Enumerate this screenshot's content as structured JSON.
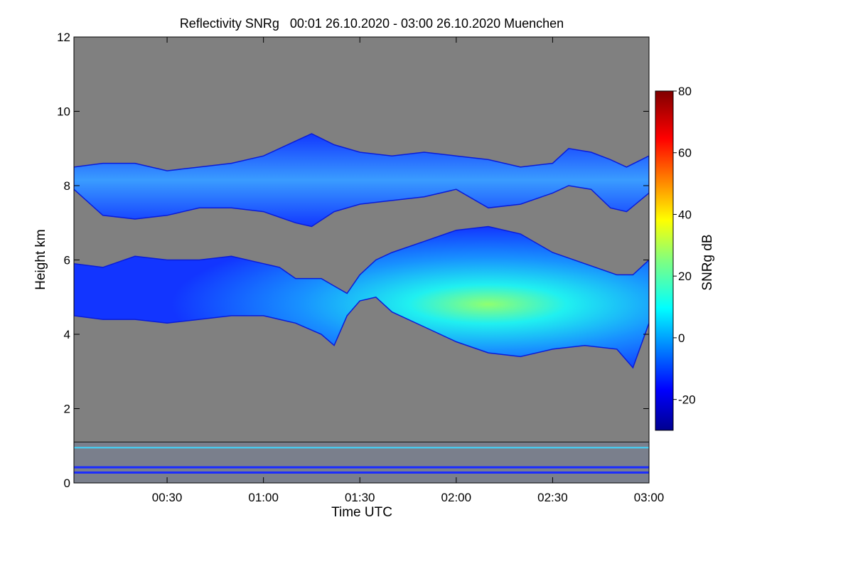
{
  "chart_data": {
    "type": "heatmap",
    "title": "Reflectivity SNRg   00:01 26.10.2020 - 03:00 26.10.2020 Muenchen",
    "xlabel": "Time UTC",
    "ylabel": "Height km",
    "x_range_minutes": [
      1,
      180
    ],
    "x_ticks": [
      {
        "label": "00:30",
        "minutes": 30
      },
      {
        "label": "01:00",
        "minutes": 60
      },
      {
        "label": "01:30",
        "minutes": 90
      },
      {
        "label": "02:00",
        "minutes": 120
      },
      {
        "label": "02:30",
        "minutes": 150
      },
      {
        "label": "03:00",
        "minutes": 180
      }
    ],
    "ylim": [
      0,
      12
    ],
    "y_ticks": [
      0,
      2,
      4,
      6,
      8,
      10,
      12
    ],
    "background_color": "#808080",
    "colorbar": {
      "label": "SNRg dB",
      "range": [
        -30,
        80
      ],
      "ticks": [
        -20,
        0,
        20,
        40,
        60,
        80
      ],
      "colormap": "jet"
    },
    "cloud_layers": [
      {
        "name": "upper",
        "mean_snr_db": -8,
        "profile": [
          {
            "t": 0,
            "base": 7.9,
            "top": 8.5
          },
          {
            "t": 10,
            "base": 7.2,
            "top": 8.6
          },
          {
            "t": 20,
            "base": 7.1,
            "top": 8.6
          },
          {
            "t": 30,
            "base": 7.2,
            "top": 8.4
          },
          {
            "t": 40,
            "base": 7.4,
            "top": 8.5
          },
          {
            "t": 50,
            "base": 7.4,
            "top": 8.6
          },
          {
            "t": 60,
            "base": 7.3,
            "top": 8.8
          },
          {
            "t": 70,
            "base": 7.0,
            "top": 9.2
          },
          {
            "t": 75,
            "base": 6.9,
            "top": 9.4
          },
          {
            "t": 82,
            "base": 7.3,
            "top": 9.1
          },
          {
            "t": 90,
            "base": 7.5,
            "top": 8.9
          },
          {
            "t": 100,
            "base": 7.6,
            "top": 8.8
          },
          {
            "t": 110,
            "base": 7.7,
            "top": 8.9
          },
          {
            "t": 120,
            "base": 7.9,
            "top": 8.8
          },
          {
            "t": 130,
            "base": 7.4,
            "top": 8.7
          },
          {
            "t": 140,
            "base": 7.5,
            "top": 8.5
          },
          {
            "t": 150,
            "base": 7.8,
            "top": 8.6
          },
          {
            "t": 155,
            "base": 8.0,
            "top": 9.0
          },
          {
            "t": 162,
            "base": 7.9,
            "top": 8.9
          },
          {
            "t": 168,
            "base": 7.4,
            "top": 8.7
          },
          {
            "t": 173,
            "base": 7.3,
            "top": 8.5
          },
          {
            "t": 180,
            "base": 7.8,
            "top": 8.8
          }
        ]
      },
      {
        "name": "lower",
        "mean_snr_db": -2,
        "peak_snr_db": 30,
        "peak_minutes": 133,
        "peak_height_km": 4.6,
        "profile": [
          {
            "t": 0,
            "base": 4.5,
            "top": 5.9
          },
          {
            "t": 10,
            "base": 4.4,
            "top": 5.8
          },
          {
            "t": 20,
            "base": 4.4,
            "top": 6.1
          },
          {
            "t": 30,
            "base": 4.3,
            "top": 6.0
          },
          {
            "t": 40,
            "base": 4.4,
            "top": 6.0
          },
          {
            "t": 50,
            "base": 4.5,
            "top": 6.1
          },
          {
            "t": 60,
            "base": 4.5,
            "top": 5.9
          },
          {
            "t": 65,
            "base": 4.4,
            "top": 5.8
          },
          {
            "t": 70,
            "base": 4.3,
            "top": 5.5
          },
          {
            "t": 78,
            "base": 4.0,
            "top": 5.5
          },
          {
            "t": 82,
            "base": 3.7,
            "top": 5.3
          },
          {
            "t": 86,
            "base": 4.5,
            "top": 5.1
          },
          {
            "t": 90,
            "base": 4.9,
            "top": 5.6
          },
          {
            "t": 95,
            "base": 5.0,
            "top": 6.0
          },
          {
            "t": 100,
            "base": 4.6,
            "top": 6.2
          },
          {
            "t": 110,
            "base": 4.2,
            "top": 6.5
          },
          {
            "t": 120,
            "base": 3.8,
            "top": 6.8
          },
          {
            "t": 130,
            "base": 3.5,
            "top": 6.9
          },
          {
            "t": 140,
            "base": 3.4,
            "top": 6.7
          },
          {
            "t": 150,
            "base": 3.6,
            "top": 6.2
          },
          {
            "t": 160,
            "base": 3.7,
            "top": 5.9
          },
          {
            "t": 170,
            "base": 3.6,
            "top": 5.6
          },
          {
            "t": 175,
            "base": 3.1,
            "top": 5.6
          },
          {
            "t": 180,
            "base": 4.3,
            "top": 6.0
          }
        ]
      }
    ],
    "ground_clutter": {
      "top_km": 1.1,
      "band_heights_km": [
        0.95,
        0.42,
        0.28
      ],
      "band_colors": [
        "#40d8ff",
        "#1a2cff",
        "#1a2cff"
      ]
    }
  }
}
